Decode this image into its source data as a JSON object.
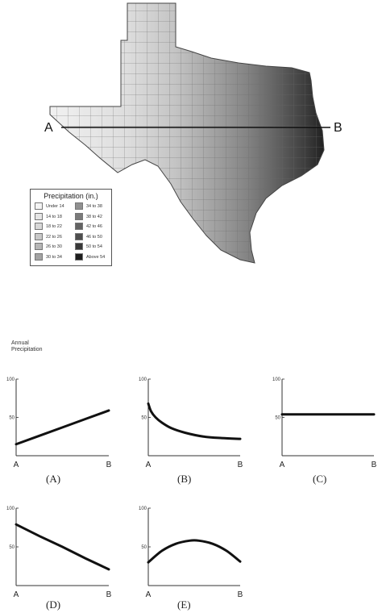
{
  "map": {
    "point_a": "A",
    "point_b": "B",
    "legend_title": "Precipitation (in.)",
    "legend_items": [
      {
        "label": "Under 14",
        "color": "#f4f4f4"
      },
      {
        "label": "14 to 18",
        "color": "#e6e6e6"
      },
      {
        "label": "18 to 22",
        "color": "#d8d8d8"
      },
      {
        "label": "22 to 26",
        "color": "#c8c8c8"
      },
      {
        "label": "26 to 30",
        "color": "#b6b6b6"
      },
      {
        "label": "30 to 34",
        "color": "#a3a3a3"
      },
      {
        "label": "34 to 38",
        "color": "#909090"
      },
      {
        "label": "38 to 42",
        "color": "#7a7a7a"
      },
      {
        "label": "42 to 46",
        "color": "#636363"
      },
      {
        "label": "46 to 50",
        "color": "#4e4e4e"
      },
      {
        "label": "50 to 54",
        "color": "#383838"
      },
      {
        "label": "Above 54",
        "color": "#1e1e1e"
      }
    ]
  },
  "y_axis_title": "Annual Precipitation",
  "chart_data": [
    {
      "type": "line",
      "caption": "(A)",
      "x_labels": [
        "A",
        "B"
      ],
      "yticks": [
        50,
        100
      ],
      "ylim": [
        0,
        100
      ],
      "series": [
        {
          "x": [
            0,
            0.25,
            0.5,
            0.75,
            1
          ],
          "y": [
            15,
            26,
            37,
            48,
            59
          ]
        }
      ]
    },
    {
      "type": "line",
      "caption": "(B)",
      "x_labels": [
        "A",
        "B"
      ],
      "yticks": [
        50,
        100
      ],
      "ylim": [
        0,
        100
      ],
      "series": [
        {
          "x": [
            0,
            0.03,
            0.08,
            0.15,
            0.25,
            0.4,
            0.6,
            0.8,
            1
          ],
          "y": [
            68,
            58,
            50,
            43,
            36,
            30,
            25,
            23,
            22
          ]
        }
      ]
    },
    {
      "type": "line",
      "caption": "(C)",
      "x_labels": [
        "A",
        "B"
      ],
      "yticks": [
        50,
        100
      ],
      "ylim": [
        0,
        100
      ],
      "series": [
        {
          "x": [
            0,
            1
          ],
          "y": [
            54,
            54
          ]
        }
      ]
    },
    {
      "type": "line",
      "caption": "(D)",
      "x_labels": [
        "A",
        "B"
      ],
      "yticks": [
        50,
        100
      ],
      "ylim": [
        0,
        100
      ],
      "series": [
        {
          "x": [
            0,
            0.25,
            0.5,
            0.75,
            1
          ],
          "y": [
            79,
            64,
            50,
            35,
            21
          ]
        }
      ]
    },
    {
      "type": "line",
      "caption": "(E)",
      "x_labels": [
        "A",
        "B"
      ],
      "yticks": [
        50,
        100
      ],
      "ylim": [
        0,
        100
      ],
      "series": [
        {
          "x": [
            0,
            0.15,
            0.3,
            0.45,
            0.55,
            0.7,
            0.85,
            1
          ],
          "y": [
            30,
            45,
            54,
            58,
            58,
            54,
            45,
            31
          ]
        }
      ]
    }
  ]
}
